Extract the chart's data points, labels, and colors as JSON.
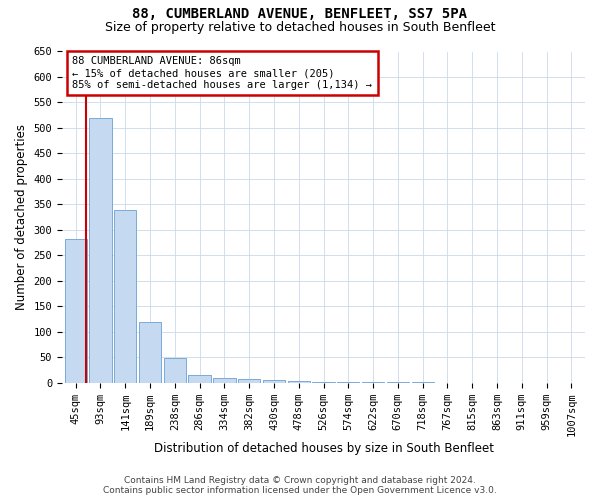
{
  "title": "88, CUMBERLAND AVENUE, BENFLEET, SS7 5PA",
  "subtitle": "Size of property relative to detached houses in South Benfleet",
  "xlabel": "Distribution of detached houses by size in South Benfleet",
  "ylabel": "Number of detached properties",
  "footer_line1": "Contains HM Land Registry data © Crown copyright and database right 2024.",
  "footer_line2": "Contains public sector information licensed under the Open Government Licence v3.0.",
  "categories": [
    "45sqm",
    "93sqm",
    "141sqm",
    "189sqm",
    "238sqm",
    "286sqm",
    "334sqm",
    "382sqm",
    "430sqm",
    "478sqm",
    "526sqm",
    "574sqm",
    "622sqm",
    "670sqm",
    "718sqm",
    "767sqm",
    "815sqm",
    "863sqm",
    "911sqm",
    "959sqm",
    "1007sqm"
  ],
  "values": [
    283,
    519,
    340,
    120,
    48,
    16,
    10,
    8,
    5,
    3,
    2,
    1,
    1,
    1,
    1,
    0,
    0,
    0,
    0,
    0,
    0
  ],
  "bar_color": "#c5d9f1",
  "bar_edgecolor": "#7aabdb",
  "vline_color": "#cc0000",
  "annotation_text": "88 CUMBERLAND AVENUE: 86sqm\n← 15% of detached houses are smaller (205)\n85% of semi-detached houses are larger (1,134) →",
  "annotation_box_color": "#cc0000",
  "ylim": [
    0,
    650
  ],
  "yticks": [
    0,
    50,
    100,
    150,
    200,
    250,
    300,
    350,
    400,
    450,
    500,
    550,
    600,
    650
  ],
  "background_color": "#ffffff",
  "grid_color": "#ccd9ea",
  "title_fontsize": 10,
  "subtitle_fontsize": 9,
  "axis_label_fontsize": 8.5,
  "tick_fontsize": 7.5,
  "footer_fontsize": 6.5
}
